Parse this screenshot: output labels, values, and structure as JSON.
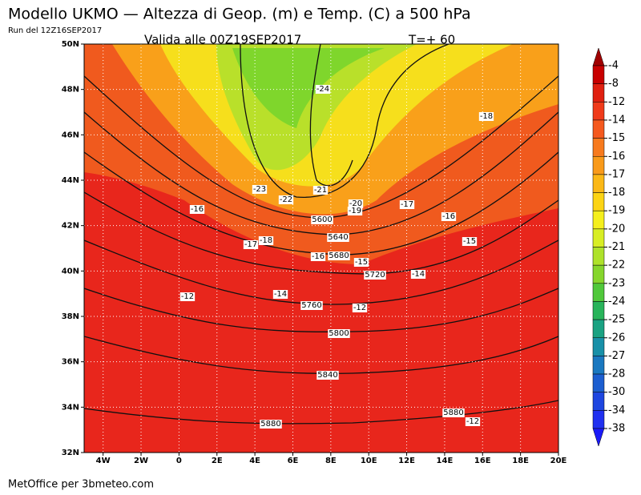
{
  "header": {
    "title": "Modello UKMO — Altezza di Geop. (m) e Temp. (C) a 500 hPa",
    "run": "Run del 12Z16SEP2017",
    "valid": "Valida alle 00Z19SEP2017",
    "lead": "T=+ 60"
  },
  "axes": {
    "x": [
      "4W",
      "2W",
      "0",
      "2E",
      "4E",
      "6E",
      "8E",
      "10E",
      "12E",
      "14E",
      "16E",
      "18E",
      "20E"
    ],
    "y": [
      "32N",
      "34N",
      "36N",
      "38N",
      "40N",
      "42N",
      "44N",
      "46N",
      "48N",
      "50N"
    ]
  },
  "legend": [
    "-4",
    "-8",
    "-12",
    "-14",
    "-15",
    "-16",
    "-17",
    "-18",
    "-19",
    "-20",
    "-21",
    "-22",
    "-23",
    "-24",
    "-25",
    "-26",
    "-27",
    "-28",
    "-30",
    "-34",
    "-38"
  ],
  "contour_labels": [
    "-24",
    "-18",
    "-23",
    "-22",
    "-21",
    "-20",
    "-19",
    "-17",
    "-16",
    "-16",
    "5600",
    "5640",
    "-18",
    "-17",
    "-15",
    "-16",
    "5680",
    "-15",
    "5720",
    "-14",
    "-12",
    "-14",
    "5760",
    "-12",
    "5800",
    "5840",
    "5880",
    "5880",
    "-12"
  ],
  "footer": "MetOffice per 3bmeteo.com"
}
